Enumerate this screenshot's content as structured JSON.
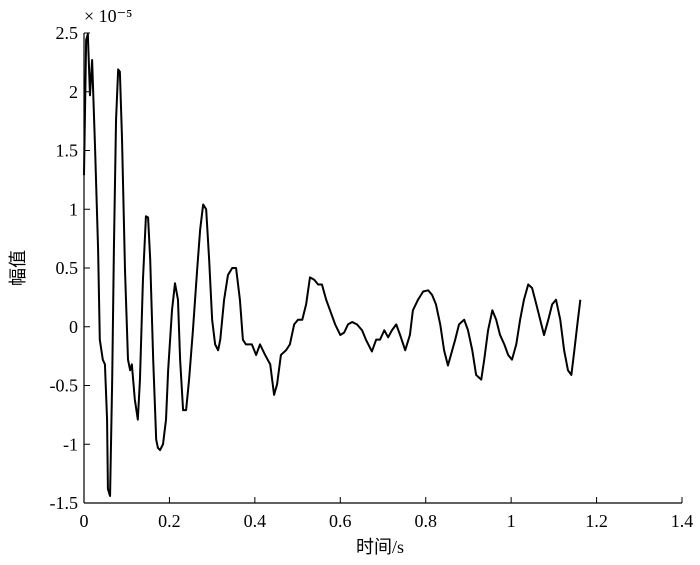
{
  "chart_data": {
    "type": "line",
    "x_label": "时间/s",
    "y_label": "幅值",
    "y_exponent_label": "× 10⁻⁵",
    "xlim": [
      0,
      1.4
    ],
    "xticks": [
      0,
      0.2,
      0.4,
      0.6,
      0.8,
      1,
      1.2,
      1.4
    ],
    "ylim": [
      -1.5,
      2.5
    ],
    "yticks": [
      -1.5,
      -1,
      -0.5,
      0,
      0.5,
      1,
      1.5,
      2,
      2.5
    ],
    "color": "#000000",
    "x": [
      0,
      0.005,
      0.009,
      0.014,
      0.019,
      0.026,
      0.033,
      0.037,
      0.044,
      0.049,
      0.054,
      0.056,
      0.061,
      0.066,
      0.07,
      0.075,
      0.08,
      0.084,
      0.089,
      0.096,
      0.103,
      0.108,
      0.112,
      0.119,
      0.126,
      0.131,
      0.138,
      0.145,
      0.15,
      0.155,
      0.162,
      0.169,
      0.173,
      0.178,
      0.185,
      0.192,
      0.197,
      0.206,
      0.213,
      0.22,
      0.225,
      0.232,
      0.239,
      0.246,
      0.255,
      0.265,
      0.272,
      0.279,
      0.286,
      0.293,
      0.3,
      0.307,
      0.314,
      0.319,
      0.328,
      0.337,
      0.347,
      0.356,
      0.365,
      0.372,
      0.379,
      0.393,
      0.403,
      0.412,
      0.424,
      0.436,
      0.445,
      0.452,
      0.461,
      0.473,
      0.482,
      0.492,
      0.501,
      0.511,
      0.52,
      0.529,
      0.539,
      0.548,
      0.557,
      0.567,
      0.576,
      0.588,
      0.6,
      0.609,
      0.618,
      0.628,
      0.639,
      0.651,
      0.66,
      0.674,
      0.684,
      0.693,
      0.703,
      0.712,
      0.721,
      0.731,
      0.74,
      0.752,
      0.763,
      0.77,
      0.782,
      0.794,
      0.806,
      0.815,
      0.824,
      0.834,
      0.843,
      0.852,
      0.859,
      0.869,
      0.878,
      0.89,
      0.899,
      0.909,
      0.918,
      0.93,
      0.937,
      0.946,
      0.956,
      0.965,
      0.974,
      0.984,
      0.993,
      1.002,
      1.012,
      1.021,
      1.03,
      1.04,
      1.049,
      1.059,
      1.068,
      1.077,
      1.087,
      1.096,
      1.105,
      1.115,
      1.124,
      1.133,
      1.141,
      1.148,
      1.155,
      1.162
    ],
    "values": [
      1.29,
      2.44,
      2.49,
      1.97,
      2.27,
      1.51,
      0.66,
      -0.11,
      -0.28,
      -0.32,
      -0.79,
      -1.38,
      -1.44,
      -0.45,
      0.66,
      1.76,
      2.19,
      2.17,
      1.6,
      0.48,
      -0.28,
      -0.37,
      -0.32,
      -0.62,
      -0.79,
      -0.45,
      0.4,
      0.94,
      0.93,
      0.57,
      -0.28,
      -0.96,
      -1.03,
      -1.05,
      -1.0,
      -0.79,
      -0.37,
      0.14,
      0.37,
      0.23,
      -0.28,
      -0.71,
      -0.71,
      -0.45,
      -0.03,
      0.49,
      0.83,
      1.04,
      1.0,
      0.57,
      0.06,
      -0.15,
      -0.2,
      -0.11,
      0.23,
      0.44,
      0.5,
      0.5,
      0.23,
      -0.11,
      -0.15,
      -0.15,
      -0.24,
      -0.15,
      -0.24,
      -0.32,
      -0.58,
      -0.49,
      -0.24,
      -0.2,
      -0.15,
      0.02,
      0.06,
      0.06,
      0.19,
      0.42,
      0.4,
      0.36,
      0.36,
      0.23,
      0.14,
      0.02,
      -0.07,
      -0.05,
      0.02,
      0.04,
      0.02,
      -0.03,
      -0.11,
      -0.21,
      -0.11,
      -0.11,
      -0.03,
      -0.09,
      -0.03,
      0.02,
      -0.07,
      -0.2,
      -0.07,
      0.14,
      0.23,
      0.3,
      0.31,
      0.27,
      0.19,
      0.02,
      -0.2,
      -0.33,
      -0.24,
      -0.11,
      0.02,
      0.06,
      -0.03,
      -0.2,
      -0.41,
      -0.45,
      -0.28,
      -0.03,
      0.14,
      0.06,
      -0.07,
      -0.15,
      -0.24,
      -0.28,
      -0.15,
      0.06,
      0.23,
      0.36,
      0.33,
      0.19,
      0.06,
      -0.07,
      0.06,
      0.19,
      0.23,
      0.06,
      -0.2,
      -0.37,
      -0.41,
      -0.2,
      0.02,
      0.23
    ]
  }
}
